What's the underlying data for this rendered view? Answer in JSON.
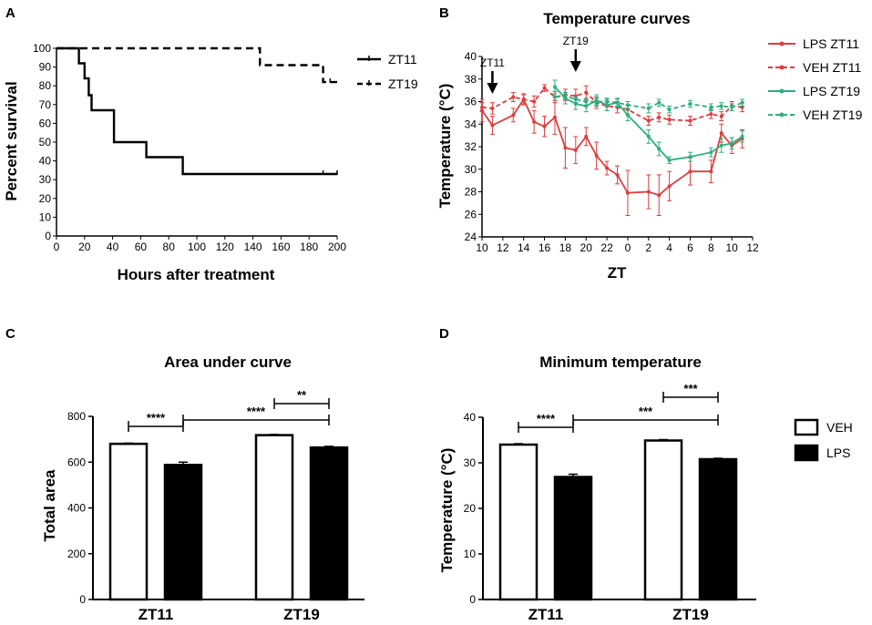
{
  "panels": [
    {
      "letter": "A"
    },
    {
      "letter": "B"
    },
    {
      "letter": "C"
    },
    {
      "letter": "D"
    }
  ],
  "chart_data": [
    {
      "type": "line",
      "subtype": "kaplan-meier",
      "panel": "A",
      "title": "",
      "xlabel": "Hours after treatment",
      "ylabel": "Percent survival",
      "xlim": [
        0,
        200
      ],
      "ylim": [
        0,
        100
      ],
      "xticks": [
        0,
        20,
        40,
        60,
        80,
        100,
        120,
        140,
        160,
        180,
        200
      ],
      "yticks": [
        0,
        10,
        20,
        30,
        40,
        50,
        60,
        70,
        80,
        90,
        100
      ],
      "legend_position": "right",
      "series": [
        {
          "name": "ZT11",
          "style": "solid",
          "color": "#000000",
          "x": [
            0,
            16,
            16,
            20,
            20,
            23,
            23,
            25,
            25,
            28,
            28,
            41,
            41,
            64,
            64,
            90,
            90,
            200
          ],
          "y": [
            100,
            100,
            92,
            92,
            84,
            84,
            75,
            75,
            67,
            67,
            67,
            67,
            50,
            50,
            42,
            42,
            33,
            33
          ],
          "censored": [
            [
              190,
              33
            ],
            [
              200,
              33
            ]
          ]
        },
        {
          "name": "ZT19",
          "style": "dashed",
          "color": "#000000",
          "x": [
            0,
            145,
            145,
            190,
            190,
            200
          ],
          "y": [
            100,
            100,
            91,
            91,
            82,
            82
          ],
          "censored": [
            [
              195,
              82
            ]
          ]
        }
      ]
    },
    {
      "type": "line",
      "panel": "B",
      "title": "Temperature curves",
      "xlabel": "ZT",
      "ylabel": "Temperature (°C)",
      "ylim": [
        24,
        40
      ],
      "xtick_labels": [
        "10",
        "12",
        "14",
        "16",
        "18",
        "20",
        "22",
        "0",
        "2",
        "4",
        "6",
        "8",
        "10",
        "12"
      ],
      "yticks": [
        24,
        26,
        28,
        30,
        32,
        34,
        36,
        38,
        40
      ],
      "annotations": [
        {
          "text": "ZT11",
          "x_hours": 11
        },
        {
          "text": "ZT19",
          "x_hours": 19
        }
      ],
      "legend_position": "right",
      "series": [
        {
          "name": "LPS ZT11",
          "color": "#e03c3c",
          "style": "solid",
          "x_hours": [
            10,
            11,
            13,
            14,
            15,
            16,
            17,
            18,
            19,
            20,
            21,
            22,
            23,
            24,
            26,
            27,
            28,
            30,
            32,
            33,
            34,
            35
          ],
          "values": [
            35.2,
            33.9,
            34.8,
            36.2,
            34.2,
            33.8,
            34.6,
            31.9,
            31.7,
            32.9,
            31.2,
            30.1,
            29.5,
            27.9,
            28.0,
            27.7,
            28.5,
            29.8,
            29.8,
            33.2,
            32.1,
            32.7
          ],
          "errors": [
            1.0,
            0.8,
            0.6,
            0.5,
            1.0,
            0.9,
            1.5,
            1.8,
            1.2,
            0.8,
            1.2,
            0.6,
            0.8,
            2.0,
            1.5,
            1.8,
            1.3,
            1.2,
            1.0,
            0.8,
            0.7,
            0.8
          ]
        },
        {
          "name": "VEH ZT11",
          "color": "#e03c3c",
          "style": "dashed",
          "x_hours": [
            10,
            11,
            13,
            14,
            15,
            16,
            17,
            18,
            19,
            20,
            21,
            22,
            23,
            24,
            26,
            27,
            28,
            30,
            32,
            33,
            34,
            35
          ],
          "values": [
            35.5,
            35.4,
            36.4,
            36.2,
            36.0,
            37.2,
            36.4,
            36.6,
            36.5,
            36.8,
            35.9,
            35.6,
            35.5,
            35.3,
            34.3,
            34.6,
            34.4,
            34.3,
            34.9,
            34.7,
            35.6,
            35.5
          ],
          "errors": [
            0.4,
            0.5,
            0.4,
            0.4,
            0.5,
            0.3,
            0.5,
            0.5,
            0.6,
            0.6,
            0.5,
            0.4,
            0.5,
            0.4,
            0.4,
            0.4,
            0.4,
            0.4,
            0.4,
            0.4,
            0.4,
            0.4
          ]
        },
        {
          "name": "LPS ZT19",
          "color": "#2ab07f",
          "style": "solid",
          "x_hours": [
            17,
            18,
            19,
            20,
            21,
            22,
            23,
            24,
            26,
            27,
            28,
            30,
            32,
            33,
            34,
            35
          ],
          "values": [
            37.3,
            36.3,
            35.8,
            35.6,
            36.1,
            35.7,
            35.9,
            34.8,
            32.9,
            31.8,
            30.8,
            31.1,
            31.5,
            32.1,
            32.3,
            32.9
          ],
          "errors": [
            0.6,
            0.5,
            0.5,
            0.5,
            0.5,
            0.5,
            0.4,
            0.5,
            0.6,
            0.6,
            0.3,
            0.4,
            0.4,
            0.6,
            0.5,
            0.5
          ]
        },
        {
          "name": "VEH ZT19",
          "color": "#2ab07f",
          "style": "dashed",
          "x_hours": [
            17,
            18,
            19,
            20,
            21,
            22,
            23,
            24,
            26,
            27,
            28,
            30,
            32,
            33,
            34,
            35
          ],
          "values": [
            36.4,
            36.5,
            36.2,
            36.0,
            36.0,
            36.0,
            35.9,
            35.7,
            35.4,
            35.9,
            35.3,
            35.8,
            35.5,
            35.6,
            35.5,
            35.9
          ],
          "errors": [
            0.3,
            0.3,
            0.3,
            0.3,
            0.3,
            0.3,
            0.3,
            0.3,
            0.4,
            0.3,
            0.3,
            0.3,
            0.3,
            0.3,
            0.3,
            0.3
          ]
        }
      ]
    },
    {
      "type": "bar",
      "panel": "C",
      "title": "Area under curve",
      "xlabel": "",
      "ylabel": "Total area",
      "ylim": [
        0,
        800
      ],
      "yticks": [
        0,
        200,
        400,
        600,
        800
      ],
      "categories": [
        "ZT11",
        "ZT19"
      ],
      "series": [
        {
          "name": "VEH",
          "fill": "#ffffff",
          "values": [
            680,
            718
          ],
          "errors": [
            3,
            3
          ]
        },
        {
          "name": "LPS",
          "fill": "#000000",
          "values": [
            588,
            664
          ],
          "errors": [
            12,
            5
          ]
        }
      ],
      "significance": [
        {
          "label": "****",
          "from": "ZT11 VEH",
          "to": "ZT11 LPS"
        },
        {
          "label": "**",
          "from": "ZT19 VEH",
          "to": "ZT19 LPS"
        },
        {
          "label": "****",
          "from": "ZT11 LPS",
          "to": "ZT19 LPS"
        }
      ]
    },
    {
      "type": "bar",
      "panel": "D",
      "title": "Minimum temperature",
      "xlabel": "",
      "ylabel": "Temperature (°C)",
      "ylim": [
        0,
        40
      ],
      "yticks": [
        0,
        10,
        20,
        30,
        40
      ],
      "categories": [
        "ZT11",
        "ZT19"
      ],
      "legend_position": "right",
      "series": [
        {
          "name": "VEH",
          "fill": "#ffffff",
          "values": [
            34.0,
            34.9
          ],
          "errors": [
            0.2,
            0.2
          ]
        },
        {
          "name": "LPS",
          "fill": "#000000",
          "values": [
            26.9,
            30.8
          ],
          "errors": [
            0.6,
            0.2
          ]
        }
      ],
      "significance": [
        {
          "label": "****",
          "from": "ZT11 VEH",
          "to": "ZT11 LPS"
        },
        {
          "label": "***",
          "from": "ZT19 VEH",
          "to": "ZT19 LPS"
        },
        {
          "label": "***",
          "from": "ZT11 LPS",
          "to": "ZT19 LPS"
        }
      ]
    }
  ]
}
